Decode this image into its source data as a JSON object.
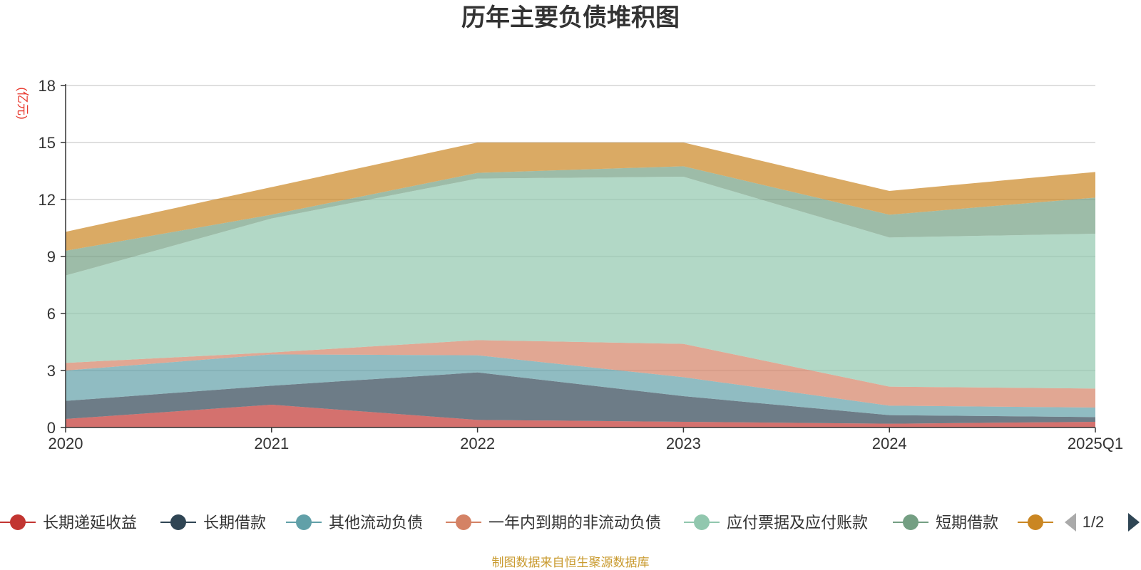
{
  "chart_data": {
    "type": "area",
    "stacked": true,
    "title": "历年主要负债堆积图",
    "y_unit": "(亿元)",
    "categories": [
      "2020",
      "2021",
      "2022",
      "2023",
      "2024",
      "2025Q1"
    ],
    "ylim": [
      0,
      18
    ],
    "yticks": [
      "0",
      "3",
      "6",
      "9",
      "12",
      "15",
      "18"
    ],
    "grid": true,
    "series": [
      {
        "name": "长期递延收益",
        "color": "#c23531",
        "values": [
          0.45,
          1.2,
          0.4,
          0.3,
          0.2,
          0.3
        ]
      },
      {
        "name": "长期借款",
        "color": "#2f4554",
        "values": [
          0.95,
          1.0,
          2.5,
          1.35,
          0.45,
          0.25
        ]
      },
      {
        "name": "其他流动负债",
        "color": "#61a0a8",
        "values": [
          1.6,
          1.65,
          0.9,
          1.0,
          0.5,
          0.5
        ]
      },
      {
        "name": "一年内到期的非流动负债",
        "color": "#d48265",
        "values": [
          0.4,
          0.1,
          0.8,
          1.75,
          1.0,
          1.0
        ]
      },
      {
        "name": "应付票据及应付账款",
        "color": "#91c7ae",
        "values": [
          4.6,
          7.05,
          8.5,
          8.8,
          7.85,
          8.15
        ]
      },
      {
        "name": "短期借款",
        "color": "#749f83",
        "values": [
          1.3,
          0.2,
          0.3,
          0.55,
          1.2,
          1.9
        ]
      },
      {
        "name": "",
        "color": "#ca8622",
        "values": [
          1.0,
          1.45,
          1.6,
          1.25,
          1.25,
          1.35
        ]
      }
    ],
    "legend": {
      "position": "bottom",
      "page": "1/2"
    }
  },
  "footer": {
    "source": "制图数据来自恒生聚源数据库"
  }
}
